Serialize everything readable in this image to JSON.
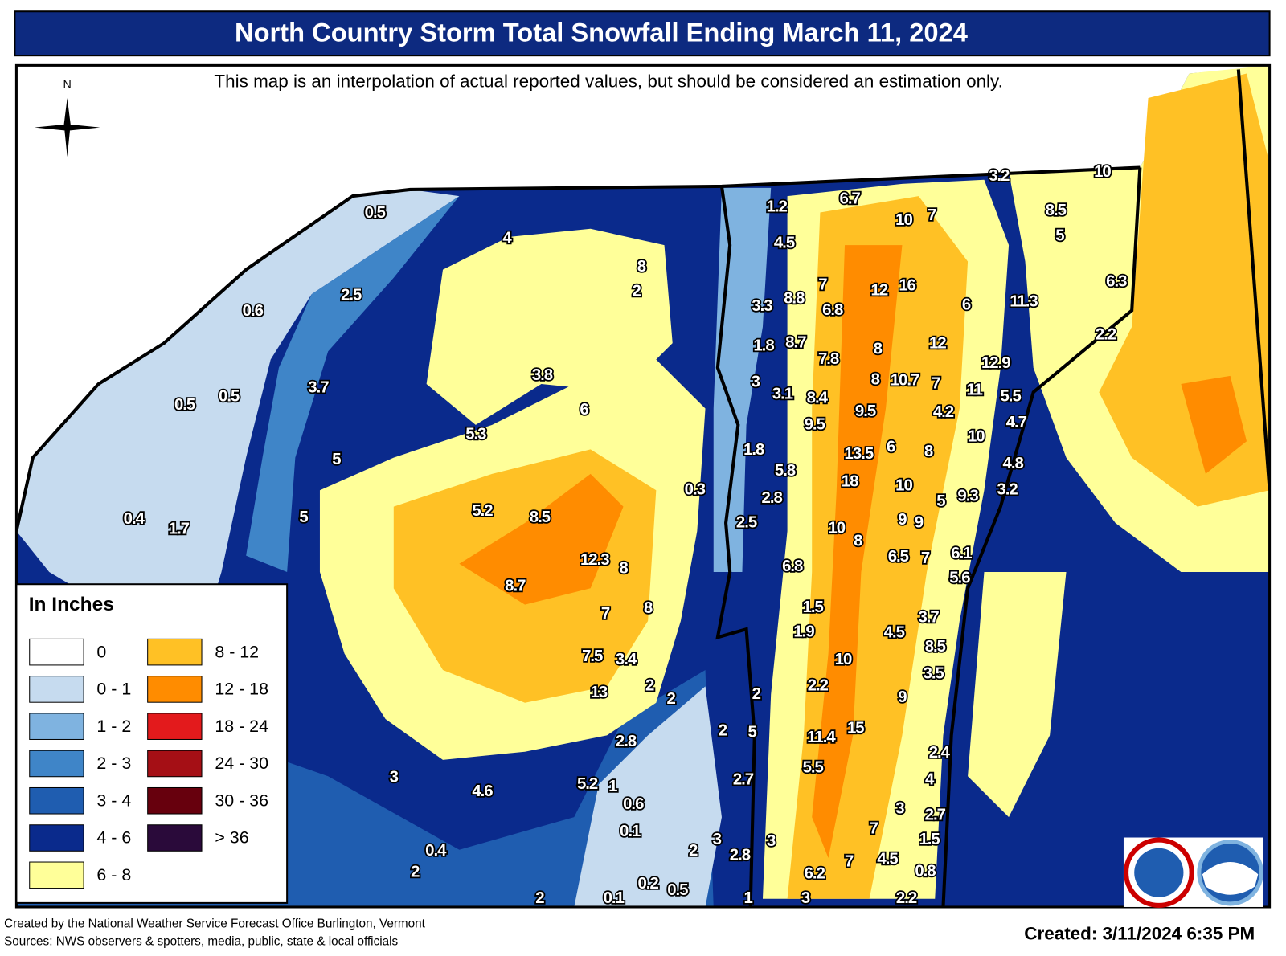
{
  "header": {
    "title": "North Country Storm Total Snowfall Ending March 11, 2024"
  },
  "note": "This map is an interpolation of actual reported values, but should be considered an estimation only.",
  "compass": "N",
  "legend": {
    "title": "In Inches",
    "items": [
      {
        "label": "0",
        "color": "#ffffff"
      },
      {
        "label": "0 - 1",
        "color": "#c6dbef"
      },
      {
        "label": "1 - 2",
        "color": "#7fb3e0"
      },
      {
        "label": "2 - 3",
        "color": "#3f85c8"
      },
      {
        "label": "3 - 4",
        "color": "#1f5db0"
      },
      {
        "label": "4 - 6",
        "color": "#0a2a8c"
      },
      {
        "label": "6 - 8",
        "color": "#ffff99"
      },
      {
        "label": "8 - 12",
        "color": "#ffc125"
      },
      {
        "label": "12 - 18",
        "color": "#ff8c00"
      },
      {
        "label": "18 - 24",
        "color": "#e31a1c"
      },
      {
        "label": "24 - 30",
        "color": "#a50f15"
      },
      {
        "label": "30 - 36",
        "color": "#67000d"
      },
      {
        "label": "> 36",
        "color": "#2a0a3a"
      }
    ]
  },
  "map_labels": [
    "0.5",
    "4",
    "8",
    "2",
    "2.5",
    "0.6",
    "3.7",
    "0.5",
    "0.5",
    "3.8",
    "6",
    "5.3",
    "5",
    "5",
    "0.4",
    "1.7",
    "5.2",
    "8.5",
    "12.3",
    "8",
    "8.7",
    "7",
    "8",
    "7.5",
    "3.4",
    "13",
    "2",
    "2",
    "2.8",
    "3",
    "4.6",
    "5.2",
    "1",
    "0.6",
    "0.1",
    "0.4",
    "2",
    "2",
    "0.1",
    "0.2",
    "0.5",
    "0.3",
    "1.2",
    "6.7",
    "4.5",
    "10",
    "7",
    "7",
    "12",
    "16",
    "3.3",
    "8.8",
    "6.8",
    "6",
    "11.3",
    "1.8",
    "8.7",
    "7.8",
    "8",
    "12",
    "12.9",
    "3",
    "3.1",
    "8.4",
    "8",
    "10.7",
    "7",
    "11",
    "5.5",
    "9.5",
    "9.5",
    "4.2",
    "4.7",
    "10",
    "1.8",
    "13.5",
    "6",
    "8",
    "4.8",
    "5.8",
    "18",
    "10",
    "2.8",
    "5",
    "9.3",
    "3.2",
    "2.5",
    "9",
    "9",
    "10",
    "8",
    "6.5",
    "7",
    "6.1",
    "6.8",
    "5.6",
    "1.5",
    "3.7",
    "4.5",
    "1.9",
    "8.5",
    "10",
    "3.5",
    "2.2",
    "2",
    "9",
    "2",
    "5",
    "11.4",
    "15",
    "2.4",
    "5.5",
    "2.7",
    "4",
    "3",
    "2.7",
    "7",
    "1.5",
    "3",
    "3",
    "2",
    "2.8",
    "4.5",
    "7",
    "0.8",
    "6.2",
    "1",
    "3",
    "2.2",
    "3.2",
    "10",
    "8.5",
    "5",
    "6.3",
    "2.2"
  ],
  "footer": {
    "credit": "Created by the National Weather Service Forecast Office Burlington, Vermont",
    "sources": "Sources: NWS observers & spotters, media, public, state & local officials",
    "created": "Created: 3/11/2024 6:35 PM"
  }
}
